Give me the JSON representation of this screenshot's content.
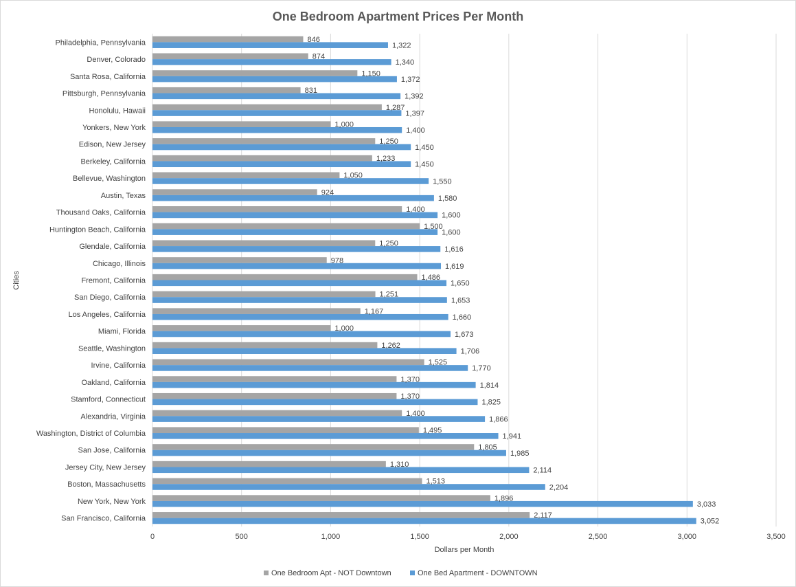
{
  "chart_data": {
    "type": "bar",
    "orientation": "horizontal",
    "title": "One Bedroom Apartment Prices Per Month",
    "xlabel": "Dollars per Month",
    "ylabel": "Cities",
    "xlim": [
      0,
      3500
    ],
    "xticks": [
      "0",
      "500",
      "1,000",
      "1,500",
      "2,000",
      "2,500",
      "3,000",
      "3,500"
    ],
    "grid": "vertical",
    "legend_position": "bottom",
    "categories": [
      "Philadelphia, Pennsylvania",
      "Denver, Colorado",
      "Santa Rosa, California",
      "Pittsburgh, Pennsylvania",
      "Honolulu, Hawaii",
      "Yonkers, New York",
      "Edison, New Jersey",
      "Berkeley, California",
      "Bellevue, Washington",
      "Austin, Texas",
      "Thousand Oaks, California",
      "Huntington Beach, California",
      "Glendale, California",
      "Chicago, Illinois",
      "Fremont, California",
      "San Diego, California",
      "Los Angeles, California",
      "Miami, Florida",
      "Seattle, Washington",
      "Irvine, California",
      "Oakland, California",
      "Stamford, Connecticut",
      "Alexandria, Virginia",
      "Washington, District of Columbia",
      "San Jose, California",
      "Jersey City, New Jersey",
      "Boston, Massachusetts",
      "New York, New York",
      "San Francisco, California"
    ],
    "series": [
      {
        "name": "One Bedroom Apt - NOT Downtown",
        "color": "#a5a5a5",
        "values": [
          846,
          874,
          1150,
          831,
          1287,
          1000,
          1250,
          1233,
          1050,
          924,
          1400,
          1500,
          1250,
          978,
          1486,
          1251,
          1167,
          1000,
          1262,
          1525,
          1370,
          1370,
          1400,
          1495,
          1805,
          1310,
          1513,
          1896,
          2117
        ],
        "labels": [
          "846",
          "874",
          "1,150",
          "831",
          "1,287",
          "1,000",
          "1,250",
          "1,233",
          "1,050",
          "924",
          "1,400",
          "1,500",
          "1,250",
          "978",
          "1,486",
          "1,251",
          "1,167",
          "1,000",
          "1,262",
          "1,525",
          "1,370",
          "1,370",
          "1,400",
          "1,495",
          "1,805",
          "1,310",
          "1,513",
          "1,896",
          "2,117"
        ]
      },
      {
        "name": "One Bed Apartment - DOWNTOWN",
        "color": "#5b9bd5",
        "values": [
          1322,
          1340,
          1372,
          1392,
          1397,
          1400,
          1450,
          1450,
          1550,
          1580,
          1600,
          1600,
          1616,
          1619,
          1650,
          1653,
          1660,
          1673,
          1706,
          1770,
          1814,
          1825,
          1866,
          1941,
          1985,
          2114,
          2204,
          3033,
          3052
        ],
        "labels": [
          "1,322",
          "1,340",
          "1,372",
          "1,392",
          "1,397",
          "1,400",
          "1,450",
          "1,450",
          "1,550",
          "1,580",
          "1,600",
          "1,600",
          "1,616",
          "1,619",
          "1,650",
          "1,653",
          "1,660",
          "1,673",
          "1,706",
          "1,770",
          "1,814",
          "1,825",
          "1,866",
          "1,941",
          "1,985",
          "2,114",
          "2,204",
          "3,033",
          "3,052"
        ]
      }
    ]
  }
}
